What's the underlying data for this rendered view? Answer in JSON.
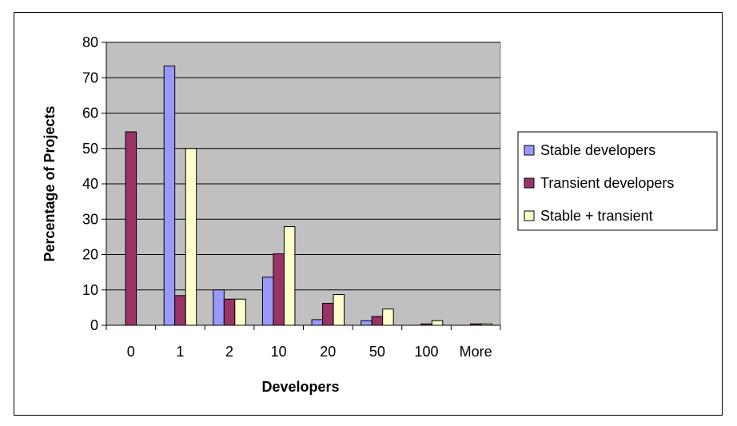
{
  "chart_data": {
    "type": "bar",
    "categories": [
      "0",
      "1",
      "2",
      "10",
      "20",
      "50",
      "100",
      "More"
    ],
    "series": [
      {
        "name": "Stable developers",
        "color": "#9999FF",
        "values": [
          0,
          73.3,
          10,
          13.6,
          1.6,
          1.3,
          0,
          0
        ]
      },
      {
        "name": "Transient developers",
        "color": "#993366",
        "values": [
          54.7,
          8.4,
          7.4,
          20.2,
          6.2,
          2.5,
          0.4,
          0.4
        ]
      },
      {
        "name": "Stable + transient",
        "color": "#FFFFCC",
        "values": [
          0,
          50,
          7.4,
          27.9,
          8.7,
          4.6,
          1.3,
          0.4
        ]
      }
    ],
    "xlabel": "Developers",
    "ylabel": "Percentage of Projects",
    "ylim": [
      0,
      80
    ],
    "yticks": [
      0,
      10,
      20,
      30,
      40,
      50,
      60,
      70,
      80
    ],
    "grid": true,
    "plot_background": "#C0C0C0",
    "legend_position": "right"
  }
}
